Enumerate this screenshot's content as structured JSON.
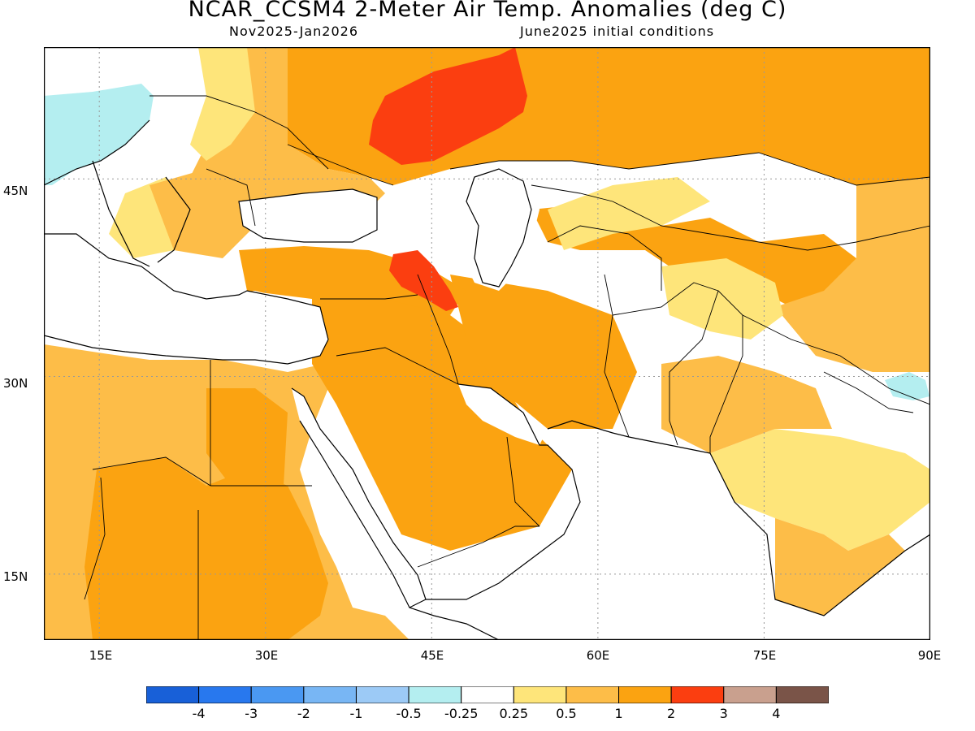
{
  "header": {
    "title": "NCAR_CCSM4 2-Meter Air Temp. Anomalies (deg C)",
    "valid_period": "Nov2025-Jan2026",
    "initial_conditions": "June2025 initial conditions"
  },
  "map": {
    "extent": {
      "lon_min": 10,
      "lon_max": 90,
      "lat_min": 10,
      "lat_max": 55
    },
    "lat_labels": [
      {
        "lat": 45,
        "text": "45N"
      },
      {
        "lat": 30,
        "text": "30N"
      },
      {
        "lat": 15,
        "text": "15N"
      }
    ],
    "lon_labels": [
      {
        "lon": 15,
        "text": "15E"
      },
      {
        "lon": 30,
        "text": "30E"
      },
      {
        "lon": 45,
        "text": "45E"
      },
      {
        "lon": 60,
        "text": "60E"
      },
      {
        "lon": 75,
        "text": "75E"
      },
      {
        "lon": 90,
        "text": "90E"
      }
    ],
    "gridlines": true,
    "ocean_color": "#ffffff",
    "coastline_color": "#000000"
  },
  "colorbar": {
    "colors": [
      "#1860d8",
      "#2878ee",
      "#4a98f2",
      "#78b6f4",
      "#9ccaf6",
      "#b4eef0",
      "#ffffff",
      "#fee57a",
      "#fdbd48",
      "#fba311",
      "#fb3e10",
      "#c9a08e",
      "#7a5448"
    ],
    "tick_labels": [
      "-4",
      "-3",
      "-2",
      "-1",
      "-0.5",
      "-0.25",
      "0.25",
      "0.5",
      "1",
      "2",
      "3",
      "4"
    ]
  },
  "anomaly_classes": {
    "near_zero": "#ffffff",
    "light_warm": "#fee57a",
    "warm": "#fdbd48",
    "warmer": "#fba311",
    "hot": "#fb3e10",
    "light_cool": "#b4eef0"
  }
}
